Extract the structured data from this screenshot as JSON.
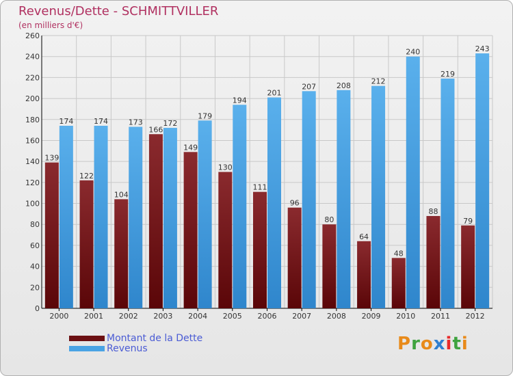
{
  "header": {
    "title": "Revenus/Dette - SCHMITTVILLER",
    "subtitle": "(en milliers d'€)"
  },
  "colors": {
    "dette": "#6b0f12",
    "revenus": "#4aa3e4",
    "title": "#b03060",
    "legend_text": "#4a5bd4",
    "grid": "#c8c8c8"
  },
  "legend": {
    "items": [
      {
        "label": "Montant de la Dette",
        "color": "#6b0f12"
      },
      {
        "label": "Revenus",
        "color": "#4aa3e4"
      }
    ]
  },
  "logo": {
    "text": "Proxiti",
    "letter_colors": [
      "#e88a1a",
      "#3fa33f",
      "#e88a1a",
      "#2f7fd0",
      "#e82a2a",
      "#3fa33f",
      "#e88a1a"
    ]
  },
  "chart_data": {
    "type": "bar",
    "title": "Revenus/Dette - SCHMITTVILLER",
    "subtitle": "(en milliers d'€)",
    "categories": [
      "2000",
      "2001",
      "2002",
      "2003",
      "2004",
      "2005",
      "2006",
      "2007",
      "2008",
      "2009",
      "2010",
      "2011",
      "2012"
    ],
    "series": [
      {
        "name": "Montant de la Dette",
        "values": [
          139,
          122,
          104,
          166,
          149,
          130,
          111,
          96,
          80,
          64,
          48,
          88,
          79
        ]
      },
      {
        "name": "Revenus",
        "values": [
          174,
          174,
          173,
          172,
          179,
          194,
          201,
          207,
          208,
          212,
          240,
          219,
          243
        ]
      }
    ],
    "ylim": [
      0,
      260
    ],
    "yticks": [
      0,
      20,
      40,
      60,
      80,
      100,
      120,
      140,
      160,
      180,
      200,
      220,
      240,
      260
    ],
    "grid": true,
    "legend_position": "bottom-left"
  }
}
